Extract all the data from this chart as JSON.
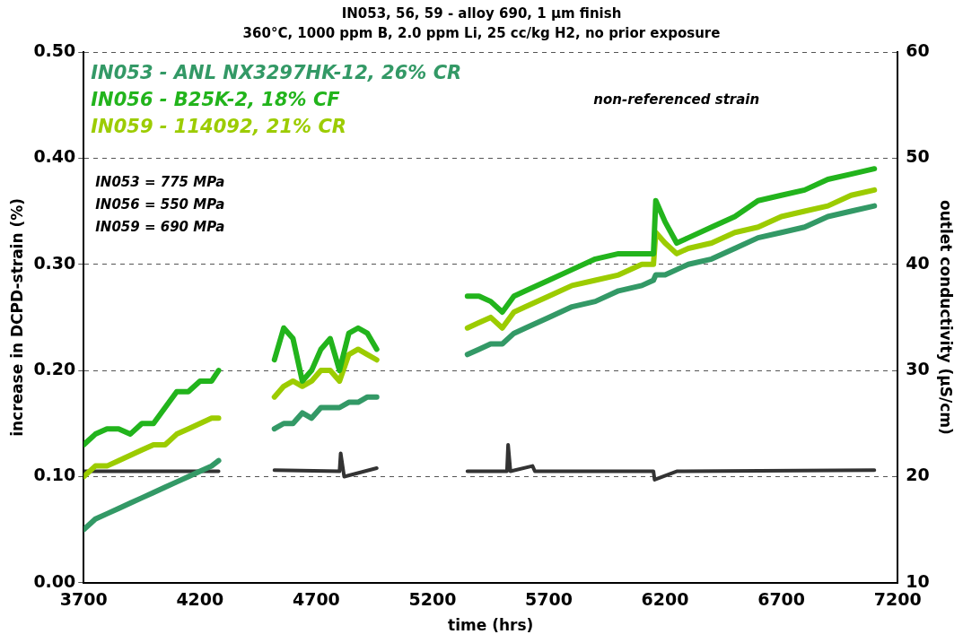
{
  "chart_data": {
    "type": "line",
    "title": "IN053, 56, 59 - alloy 690, 1 µm finish",
    "subtitle": "360°C, 1000 ppm B, 2.0 ppm Li, 25 cc/kg H2, no prior exposure",
    "xlabel": "time (hrs)",
    "ylabel": "increase in DCPD-strain (%)",
    "y2label": "outlet conductivity (µS/cm)",
    "xlim": [
      3700,
      7200
    ],
    "xticks": [
      3700,
      4200,
      4700,
      5200,
      5700,
      6200,
      6700,
      7200
    ],
    "ylim": [
      0,
      0.5
    ],
    "yticks": [
      {
        "value": 0,
        "label": "0.00"
      },
      {
        "value": 0.1,
        "label": "0.10"
      },
      {
        "value": 0.2,
        "label": "0.20"
      },
      {
        "value": 0.3,
        "label": "0.30"
      },
      {
        "value": 0.4,
        "label": "0.40"
      },
      {
        "value": 0.5,
        "label": "0.50"
      }
    ],
    "y2lim": [
      10,
      60
    ],
    "y2ticks": [
      10,
      20,
      30,
      40,
      50,
      60
    ],
    "grid": "y",
    "legend": "top left",
    "marker": "none",
    "line_style": "solid",
    "annotations": [
      "IN053 = 775 MPa",
      "IN056 = 550 MPa",
      "IN059 = 690 MPa",
      "non-referenced strain"
    ],
    "series": [
      {
        "name": "IN053 - ANL NX3297HK-12, 26% CR",
        "color": "#339966",
        "x": [
          3700,
          3750,
          3800,
          3850,
          3900,
          3950,
          4000,
          4050,
          4100,
          4150,
          4200,
          4250,
          4280,
          4400,
          4520,
          4560,
          4600,
          4640,
          4680,
          4720,
          4760,
          4800,
          4840,
          4880,
          4920,
          4960,
          5150,
          5350,
          5400,
          5450,
          5500,
          5550,
          5600,
          5700,
          5800,
          5900,
          6000,
          6100,
          6150,
          6160,
          6200,
          6250,
          6300,
          6400,
          6500,
          6600,
          6700,
          6800,
          6900,
          7000,
          7100
        ],
        "values": [
          0.05,
          0.06,
          0.065,
          0.07,
          0.075,
          0.08,
          0.085,
          0.09,
          0.095,
          0.1,
          0.105,
          0.11,
          0.115,
          null,
          0.145,
          0.15,
          0.15,
          0.16,
          0.155,
          0.165,
          0.165,
          0.165,
          0.17,
          0.17,
          0.175,
          0.175,
          null,
          0.215,
          0.22,
          0.225,
          0.225,
          0.235,
          0.24,
          0.25,
          0.26,
          0.265,
          0.275,
          0.28,
          0.285,
          0.29,
          0.29,
          0.295,
          0.3,
          0.305,
          0.315,
          0.325,
          0.33,
          0.335,
          0.345,
          0.35,
          0.355
        ]
      },
      {
        "name": "IN056 - B25K-2, 18% CF",
        "color": "#22b41c",
        "x": [
          3700,
          3750,
          3800,
          3850,
          3900,
          3950,
          4000,
          4050,
          4100,
          4150,
          4200,
          4250,
          4280,
          4400,
          4520,
          4560,
          4600,
          4640,
          4680,
          4720,
          4760,
          4800,
          4840,
          4880,
          4920,
          4960,
          5150,
          5350,
          5400,
          5450,
          5500,
          5550,
          5600,
          5700,
          5800,
          5900,
          6000,
          6100,
          6150,
          6160,
          6200,
          6250,
          6300,
          6400,
          6500,
          6600,
          6700,
          6800,
          6900,
          7000,
          7100
        ],
        "values": [
          0.13,
          0.14,
          0.145,
          0.145,
          0.14,
          0.15,
          0.15,
          0.165,
          0.18,
          0.18,
          0.19,
          0.19,
          0.2,
          null,
          0.21,
          0.24,
          0.23,
          0.19,
          0.2,
          0.22,
          0.23,
          0.2,
          0.235,
          0.24,
          0.235,
          0.22,
          null,
          0.27,
          0.27,
          0.265,
          0.255,
          0.27,
          0.275,
          0.285,
          0.295,
          0.305,
          0.31,
          0.31,
          0.31,
          0.36,
          0.34,
          0.32,
          0.325,
          0.335,
          0.345,
          0.36,
          0.365,
          0.37,
          0.38,
          0.385,
          0.39
        ]
      },
      {
        "name": "IN059 - 114092, 21% CR",
        "color": "#9ccc00",
        "x": [
          3700,
          3750,
          3800,
          3850,
          3900,
          3950,
          4000,
          4050,
          4100,
          4150,
          4200,
          4250,
          4280,
          4400,
          4520,
          4560,
          4600,
          4640,
          4680,
          4720,
          4760,
          4800,
          4840,
          4880,
          4920,
          4960,
          5150,
          5350,
          5400,
          5450,
          5500,
          5550,
          5600,
          5700,
          5800,
          5900,
          6000,
          6100,
          6150,
          6160,
          6200,
          6250,
          6300,
          6400,
          6500,
          6600,
          6700,
          6800,
          6900,
          7000,
          7100
        ],
        "values": [
          0.1,
          0.11,
          0.11,
          0.115,
          0.12,
          0.125,
          0.13,
          0.13,
          0.14,
          0.145,
          0.15,
          0.155,
          0.155,
          null,
          0.175,
          0.185,
          0.19,
          0.185,
          0.19,
          0.2,
          0.2,
          0.19,
          0.215,
          0.22,
          0.215,
          0.21,
          null,
          0.24,
          0.245,
          0.25,
          0.24,
          0.255,
          0.26,
          0.27,
          0.28,
          0.285,
          0.29,
          0.3,
          0.3,
          0.33,
          0.32,
          0.31,
          0.315,
          0.32,
          0.33,
          0.335,
          0.345,
          0.35,
          0.355,
          0.365,
          0.37
        ]
      },
      {
        "color": "#333333",
        "axis": "y2",
        "x": [
          3700,
          4280,
          4400,
          4520,
          4800,
          4805,
          4820,
          4960,
          5150,
          5350,
          5520,
          5525,
          5535,
          5630,
          5640,
          6150,
          6155,
          6250,
          7100
        ],
        "values": [
          20.5,
          20.5,
          null,
          20.6,
          20.5,
          22.2,
          20.0,
          20.8,
          null,
          20.5,
          20.5,
          23.0,
          20.5,
          21.0,
          20.5,
          20.5,
          19.7,
          20.5,
          20.6
        ]
      }
    ]
  }
}
